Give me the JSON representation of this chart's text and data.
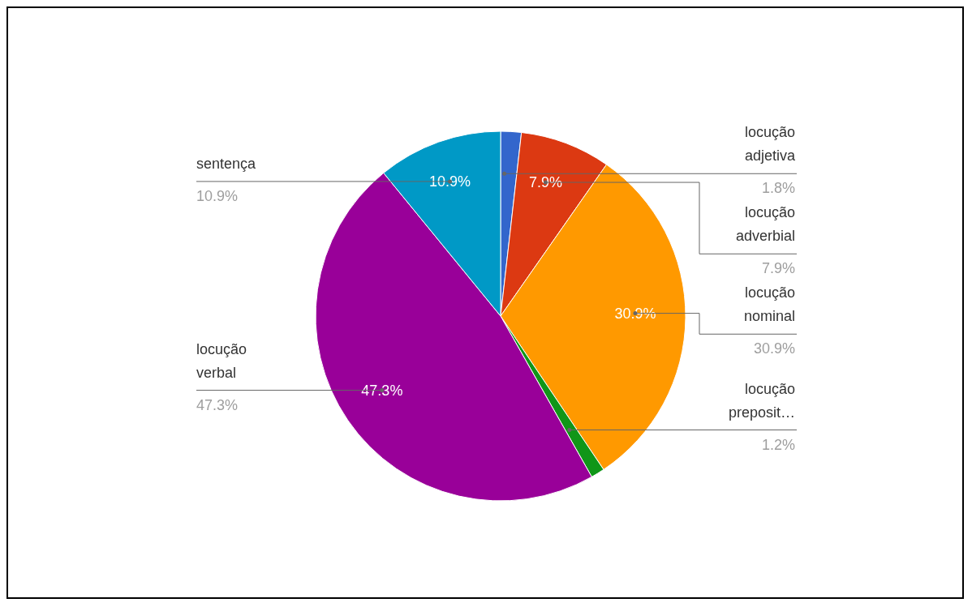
{
  "chart_data": {
    "type": "pie",
    "categories": [
      "locução adjetiva",
      "locução adverbial",
      "locução nominal",
      "locução preposit…",
      "locução verbal",
      "sentença"
    ],
    "values": [
      1.8,
      7.9,
      30.9,
      1.2,
      47.3,
      10.9
    ],
    "colors": [
      "#3366cc",
      "#dc3912",
      "#ff9900",
      "#109618",
      "#990099",
      "#0099c6"
    ],
    "value_labels": [
      "1.8%",
      "7.9%",
      "30.9%",
      "1.2%",
      "47.3%",
      "10.9%"
    ]
  }
}
